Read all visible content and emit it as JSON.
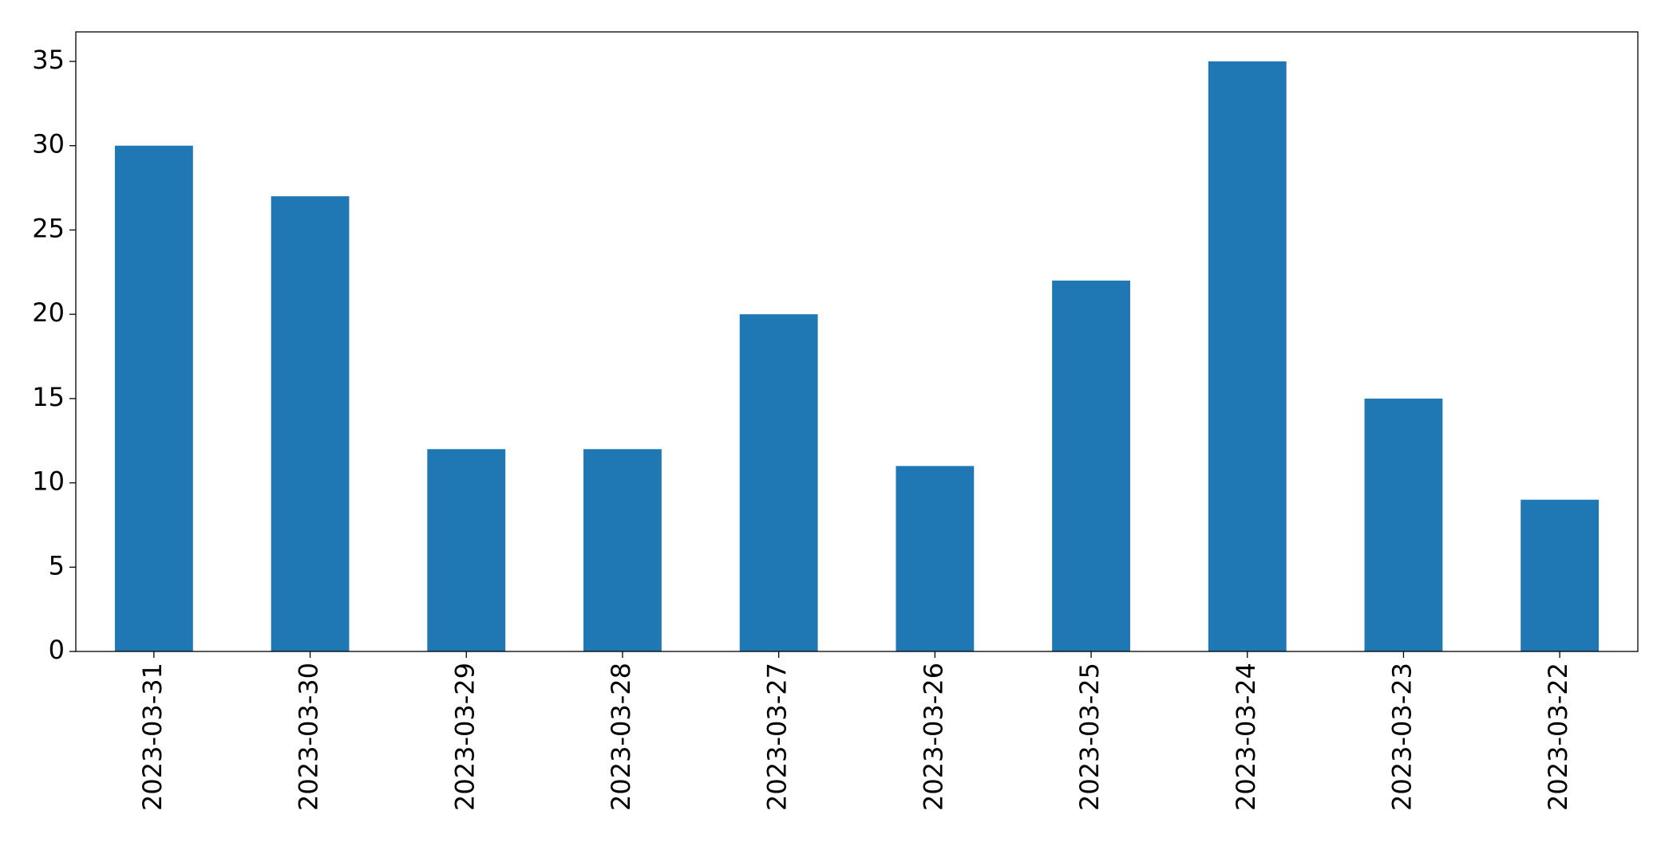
{
  "chart_data": {
    "type": "bar",
    "categories": [
      "2023-03-31",
      "2023-03-30",
      "2023-03-29",
      "2023-03-28",
      "2023-03-27",
      "2023-03-26",
      "2023-03-25",
      "2023-03-24",
      "2023-03-23",
      "2023-03-22"
    ],
    "values": [
      30,
      27,
      12,
      12,
      20,
      11,
      22,
      35,
      15,
      9
    ],
    "color": "#1f77b4",
    "ylim": [
      0,
      36.75
    ],
    "yticks": [
      0,
      5,
      10,
      15,
      20,
      25,
      30,
      35
    ],
    "grid": false
  }
}
